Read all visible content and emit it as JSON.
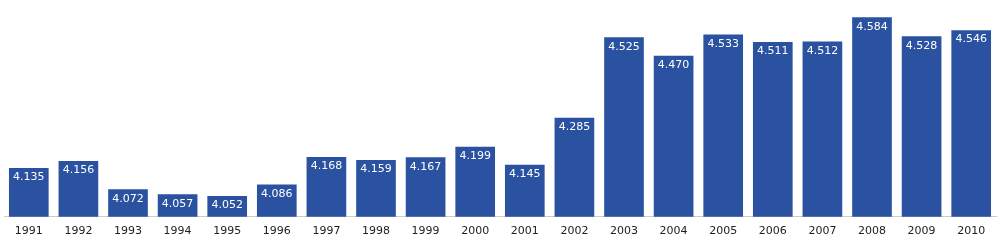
{
  "chart_data": {
    "type": "bar",
    "categories": [
      "1991",
      "1992",
      "1993",
      "1994",
      "1995",
      "1996",
      "1997",
      "1998",
      "1999",
      "2000",
      "2001",
      "2002",
      "2003",
      "2004",
      "2005",
      "2006",
      "2007",
      "2008",
      "2009",
      "2010"
    ],
    "values": [
      4135,
      4156,
      4072,
      4057,
      4052,
      4086,
      4168,
      4159,
      4167,
      4199,
      4145,
      4285,
      4525,
      4470,
      4533,
      4511,
      4512,
      4584,
      4528,
      4546
    ],
    "value_labels": [
      "4.135",
      "4.156",
      "4.072",
      "4.057",
      "4.052",
      "4.086",
      "4.168",
      "4.159",
      "4.167",
      "4.199",
      "4.145",
      "4.285",
      "4.525",
      "4.470",
      "4.533",
      "4.511",
      "4.512",
      "4.584",
      "4.528",
      "4.546"
    ],
    "color": "#2a52a0",
    "ylim": [
      3990,
      4600
    ],
    "grid": false,
    "data_labels": true,
    "tick_labels": "x"
  }
}
